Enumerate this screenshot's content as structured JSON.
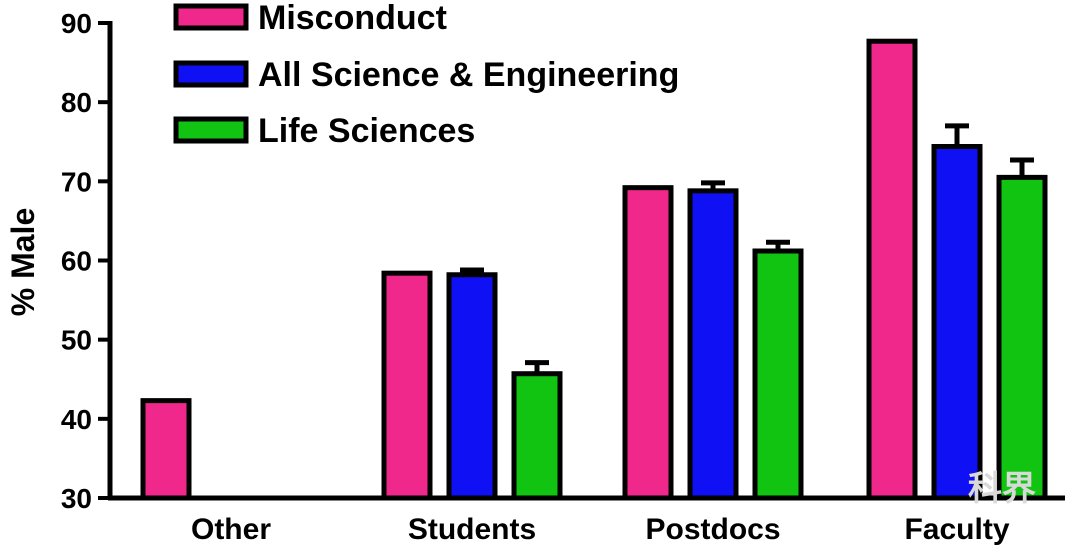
{
  "chart_data": {
    "type": "bar",
    "title": "",
    "xlabel": "",
    "ylabel": "% Male",
    "ylim": [
      30,
      90
    ],
    "yticks": [
      30,
      40,
      50,
      60,
      70,
      80,
      90
    ],
    "categories": [
      "Other",
      "Students",
      "Postdocs",
      "Faculty"
    ],
    "series": [
      {
        "name": "Misconduct",
        "color": "#f0288c",
        "values": [
          42.3,
          58.4,
          69.2,
          87.7
        ],
        "error": [
          null,
          null,
          null,
          null
        ]
      },
      {
        "name": "All Science & Engineering",
        "color": "#1010f5",
        "values": [
          null,
          58.2,
          68.8,
          74.4
        ],
        "error": [
          null,
          0.6,
          1.0,
          2.6
        ]
      },
      {
        "name": "Life Sciences",
        "color": "#11c411",
        "values": [
          null,
          45.7,
          61.2,
          70.5
        ],
        "error": [
          null,
          1.4,
          1.1,
          2.2
        ]
      }
    ],
    "legend_position": "top-left",
    "grid": false
  },
  "watermark": {
    "text": "科界"
  }
}
